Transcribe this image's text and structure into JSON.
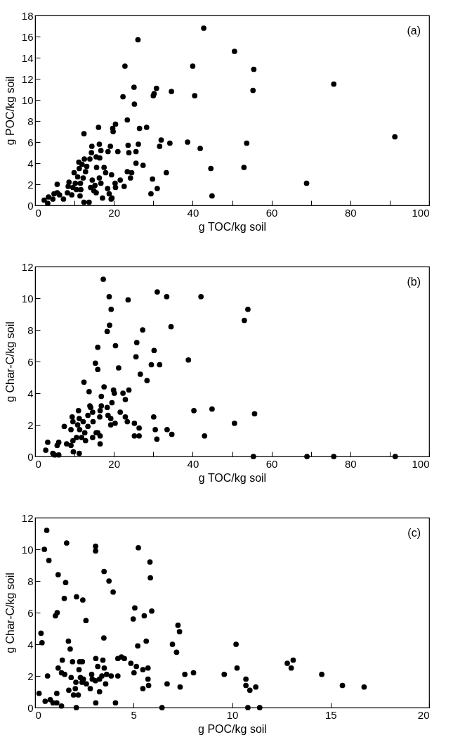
{
  "chart_data": [
    {
      "type": "scatter",
      "xlabel": "g TOC/kg soil",
      "ylabel": "g POC/kg soil",
      "annotations": [
        "(a)"
      ],
      "marker": "circle",
      "grid": false,
      "xlim": [
        0,
        100
      ],
      "xticks": [
        0,
        {
          "value": 10,
          "label": null
        },
        20,
        {
          "value": 30,
          "label": null
        },
        40,
        {
          "value": 50,
          "label": null
        },
        60,
        {
          "value": 70,
          "label": null
        },
        80,
        {
          "value": 90,
          "label": null
        },
        100
      ],
      "ylim": [
        0,
        18
      ],
      "yticks": [
        0,
        2,
        4,
        6,
        8,
        10,
        12,
        14,
        16,
        18
      ],
      "series": [
        {
          "color": "#000000",
          "x": [
            2.3,
            3.2,
            3.4,
            4.5,
            4.8,
            5.6,
            5.6,
            6.2,
            7.2,
            8.2,
            8.4,
            8.6,
            9.3,
            9.6,
            9.9,
            10.2,
            10.5,
            10.8,
            11.1,
            11.2,
            11.4,
            11.5,
            11.6,
            11.9,
            12.2,
            12.4,
            12.4,
            12.5,
            12.8,
            13.1,
            13.7,
            13.9,
            14.1,
            14.3,
            14.4,
            14.5,
            14.9,
            15.2,
            15.5,
            15.5,
            15.6,
            16.1,
            16.3,
            16.3,
            16.4,
            16.7,
            16.7,
            17.1,
            17.5,
            17.9,
            18.4,
            18.5,
            18.8,
            19.1,
            19.3,
            19.4,
            19.5,
            19.7,
            19.8,
            20.3,
            20.4,
            20.4,
            21.0,
            21.6,
            22.3,
            22.6,
            22.8,
            23.4,
            23.4,
            23.6,
            23.8,
            24.2,
            24.5,
            25.1,
            25.2,
            25.6,
            25.6,
            26.1,
            26.2,
            26.5,
            27.4,
            28.3,
            29.4,
            29.8,
            30.0,
            30.2,
            30.8,
            31.0,
            31.6,
            32.0,
            33.3,
            34.2,
            34.6,
            38.7,
            40.0,
            40.5,
            41.9,
            42.8,
            44.6,
            44.9,
            50.6,
            55.5,
            55.3,
            75.8,
            91.3,
            53.7,
            53.0,
            68.9
          ],
          "values": [
            0.5,
            0.2,
            0.8,
            0.6,
            1.1,
            1.2,
            2.0,
            1.0,
            0.6,
            1.2,
            1.8,
            2.2,
            1.0,
            1.7,
            3.1,
            2.1,
            1.5,
            2.7,
            4.1,
            3.5,
            0.9,
            2.1,
            1.5,
            3.9,
            2.6,
            6.8,
            0.3,
            4.4,
            3.2,
            3.7,
            0.3,
            4.4,
            1.7,
            5.0,
            5.6,
            2.4,
            1.4,
            1.9,
            1.2,
            4.6,
            3.6,
            7.4,
            5.8,
            2.6,
            4.5,
            5.2,
            2.1,
            0.7,
            3.6,
            3.1,
            1.6,
            5.1,
            1.1,
            5.6,
            0.6,
            2.9,
            0.7,
            7.3,
            7.0,
            2.1,
            7.7,
            1.7,
            5.1,
            2.4,
            10.3,
            1.8,
            13.2,
            8.1,
            3.2,
            5.7,
            5.0,
            2.6,
            3.1,
            11.2,
            9.6,
            5.1,
            4.0,
            15.7,
            5.8,
            7.3,
            3.8,
            7.4,
            1.1,
            2.5,
            10.4,
            10.6,
            11.1,
            1.6,
            5.6,
            6.2,
            3.1,
            5.9,
            10.8,
            6.0,
            13.2,
            10.4,
            5.4,
            16.8,
            3.5,
            0.9,
            14.6,
            12.9,
            10.9,
            11.5,
            6.5,
            5.9,
            3.6,
            2.1
          ]
        }
      ]
    },
    {
      "type": "scatter",
      "xlabel": "g TOC/kg soil",
      "ylabel": "g Char-C/kg soil",
      "annotations": [
        "(b)"
      ],
      "marker": "circle",
      "grid": false,
      "xlim": [
        0,
        100
      ],
      "xticks": [
        0,
        {
          "value": 10,
          "label": null
        },
        20,
        {
          "value": 30,
          "label": null
        },
        40,
        {
          "value": 50,
          "label": null
        },
        60,
        {
          "value": 70,
          "label": null
        },
        80,
        {
          "value": 90,
          "label": null
        },
        100
      ],
      "ylim": [
        0,
        12
      ],
      "yticks": [
        0,
        2,
        4,
        6,
        8,
        10,
        12
      ],
      "series": [
        {
          "color": "#000000",
          "x": [
            17.3,
            18.8,
            19.3,
            18.9,
            18.3,
            23.6,
            31.0,
            33.4,
            42.1,
            34.5,
            27.3,
            25.8,
            15.9,
            20.4,
            30.2,
            25.6,
            38.9,
            15.3,
            15.9,
            29.5,
            31.6,
            21.2,
            26.7,
            28.4,
            12.4,
            17.5,
            23.8,
            19.9,
            20.1,
            22.3,
            13.7,
            16.8,
            22.9,
            19.5,
            13.9,
            14.1,
            16.8,
            18.3,
            11.0,
            14.6,
            16.5,
            21.6,
            30.1,
            40.3,
            44.9,
            9.4,
            11.2,
            13.4,
            18.5,
            19.2,
            22.9,
            16.4,
            9.6,
            12.2,
            14.7,
            23.4,
            25.2,
            19.2,
            20.3,
            7.4,
            10.8,
            13.4,
            9.1,
            11.3,
            26.4,
            30.5,
            33.5,
            12.6,
            15.5,
            15.9,
            34.7,
            16.5,
            10.5,
            11.8,
            14.6,
            25.2,
            26.4,
            43.0,
            12.8,
            9.6,
            30.9,
            3.2,
            6.0,
            8.0,
            5.6,
            9.1,
            16.5,
            2.7,
            4.5,
            5.0,
            6.0,
            9.7,
            11.2,
            54.0,
            53.1,
            55.7,
            50.6,
            55.4,
            69.0,
            75.8,
            91.4
          ],
          "values": [
            11.2,
            10.1,
            9.3,
            8.3,
            7.9,
            9.9,
            10.4,
            10.1,
            10.1,
            8.2,
            8.0,
            7.2,
            6.9,
            7.0,
            6.7,
            6.3,
            6.1,
            5.9,
            5.5,
            5.8,
            5.8,
            5.6,
            5.2,
            4.8,
            4.7,
            4.4,
            4.2,
            4.2,
            4.0,
            4.0,
            4.1,
            3.8,
            3.6,
            3.4,
            3.2,
            3.1,
            3.2,
            3.1,
            2.9,
            2.8,
            2.9,
            2.8,
            2.5,
            2.9,
            3.0,
            2.5,
            2.4,
            2.6,
            2.6,
            2.4,
            2.5,
            2.5,
            2.2,
            2.2,
            2.2,
            2.2,
            2.1,
            2.0,
            2.1,
            1.9,
            2.0,
            1.9,
            1.7,
            1.7,
            1.8,
            1.7,
            1.7,
            1.5,
            1.5,
            1.5,
            1.4,
            1.3,
            1.2,
            1.2,
            1.2,
            1.3,
            1.3,
            1.3,
            1.0,
            1.0,
            1.1,
            0.9,
            0.9,
            0.8,
            0.7,
            0.7,
            0.8,
            0.4,
            0.2,
            0.1,
            0.1,
            0.3,
            0.2,
            9.3,
            8.6,
            2.7,
            2.1,
            0,
            0,
            0,
            0
          ]
        }
      ]
    },
    {
      "type": "scatter",
      "xlabel": "g POC/kg soil",
      "ylabel": "g Char-C/kg soil",
      "annotations": [
        "(c)"
      ],
      "marker": "circle",
      "grid": false,
      "xlim": [
        0,
        20
      ],
      "xticks": [
        0,
        5,
        10,
        15,
        20
      ],
      "ylim": [
        0,
        12
      ],
      "yticks": [
        0,
        2,
        4,
        6,
        8,
        10,
        12
      ],
      "series": [
        {
          "color": "#000000",
          "x": [
            0.59,
            0.47,
            1.6,
            3.07,
            3.07,
            5.24,
            0.7,
            5.83,
            3.5,
            1.17,
            1.55,
            3.75,
            5.85,
            3.96,
            1.48,
            2.1,
            2.42,
            1.03,
            1.12,
            2.58,
            5.06,
            4.98,
            5.54,
            5.92,
            7.25,
            7.33,
            0.3,
            0.35,
            1.69,
            3.49,
            1.78,
            5.21,
            5.64,
            6.97,
            7.18,
            1.38,
            1.9,
            2.26,
            2.4,
            3.08,
            3.44,
            4.2,
            4.38,
            4.53,
            4.86,
            5.14,
            5.47,
            5.73,
            1.17,
            2.23,
            3.18,
            3.51,
            3.63,
            1.34,
            1.5,
            2.87,
            5.02,
            3.86,
            4.2,
            7.6,
            8.04,
            0.63,
            1.83,
            2.3,
            2.45,
            2.6,
            2.9,
            3.06,
            3.27,
            3.39,
            2.07,
            2.38,
            2.04,
            1.71,
            1.95,
            2.19,
            2.8,
            3.27,
            3.58,
            5.73,
            5.76,
            5.47,
            6.7,
            7.36,
            0.2,
            1.1,
            0.51,
            0.77,
            0.91,
            1.1,
            1.34,
            2.09,
            3.08,
            4.08,
            6.44,
            10.2,
            10.25,
            9.6,
            10.7,
            10.7,
            10.9,
            11.2,
            10.8,
            11.4,
            12.8,
            13.0,
            13.1,
            14.55,
            15.6,
            16.7
          ],
          "values": [
            11.2,
            10.0,
            10.4,
            10.2,
            9.9,
            10.1,
            9.3,
            9.2,
            8.6,
            8.4,
            7.9,
            8.0,
            8.2,
            7.3,
            6.9,
            7.0,
            6.8,
            5.8,
            6.0,
            5.5,
            6.3,
            5.6,
            5.8,
            6.1,
            5.2,
            4.8,
            4.7,
            4.1,
            4.2,
            4.4,
            3.7,
            3.9,
            4.2,
            4.0,
            3.5,
            3.0,
            2.9,
            2.9,
            2.9,
            3.1,
            3.0,
            3.1,
            3.2,
            3.1,
            2.8,
            2.6,
            2.4,
            2.5,
            2.5,
            2.4,
            2.6,
            2.5,
            2.1,
            2.2,
            2.1,
            2.1,
            2.2,
            2.0,
            2.0,
            2.1,
            2.2,
            2.0,
            1.9,
            1.9,
            1.8,
            1.5,
            1.8,
            1.7,
            1.8,
            2.0,
            1.6,
            1.6,
            1.2,
            1.1,
            0.8,
            0.8,
            1.2,
            1.0,
            1.5,
            1.8,
            1.4,
            1.2,
            1.5,
            1.3,
            0.9,
            0.9,
            0.4,
            0.5,
            0.3,
            0.3,
            0.1,
            0,
            0.3,
            0.3,
            0,
            4.0,
            2.5,
            2.1,
            1.8,
            1.4,
            1.1,
            1.3,
            0,
            0,
            2.8,
            2.5,
            3.0,
            2.1,
            1.4,
            1.3
          ]
        }
      ]
    }
  ]
}
